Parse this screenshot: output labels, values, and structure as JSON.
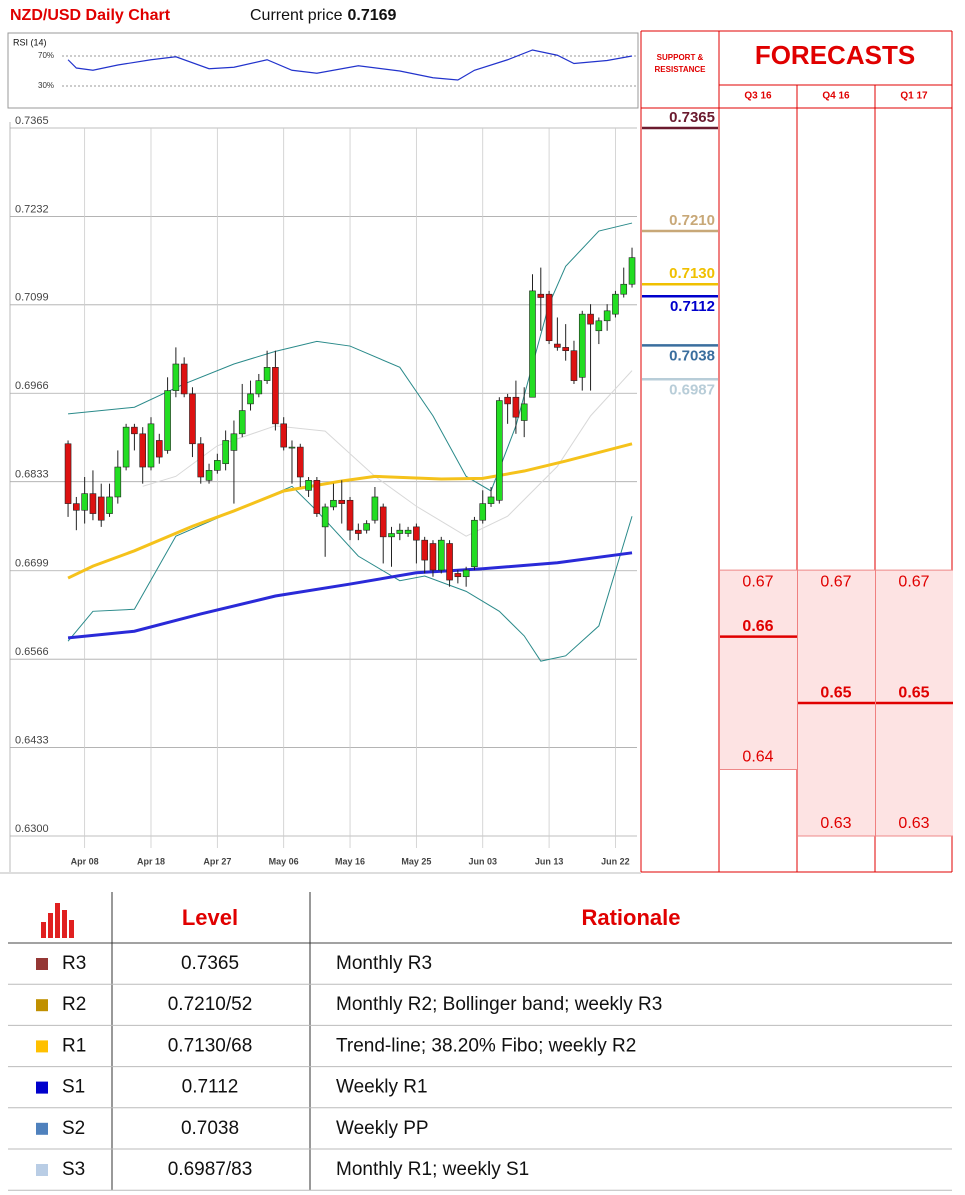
{
  "chart_data": [
    {
      "type": "candlestick",
      "title": "NZD/USD Daily Chart",
      "current_price_label": "Current price",
      "current_price": 0.7169,
      "x": [
        0,
        1,
        2,
        3,
        4,
        5,
        6,
        7,
        8,
        9,
        10,
        11,
        12,
        13,
        14,
        15,
        16,
        17,
        18,
        19,
        20,
        21,
        22,
        23,
        24,
        25,
        26,
        27,
        28,
        29,
        30,
        31,
        32,
        33,
        34,
        35,
        36,
        37,
        38,
        39,
        40,
        41,
        42,
        43,
        44,
        45,
        46,
        47,
        48,
        49,
        50,
        51,
        52,
        53,
        54,
        55,
        56,
        57,
        58,
        59,
        60,
        61,
        62,
        63,
        64,
        65,
        66,
        67,
        68
      ],
      "open": [
        0.689,
        0.68,
        0.679,
        0.6815,
        0.681,
        0.6785,
        0.681,
        0.6855,
        0.6915,
        0.6905,
        0.6855,
        0.6895,
        0.688,
        0.697,
        0.701,
        0.6965,
        0.689,
        0.6835,
        0.685,
        0.686,
        0.688,
        0.6905,
        0.695,
        0.6965,
        0.6985,
        0.7005,
        0.692,
        0.6885,
        0.6885,
        0.682,
        0.6835,
        0.6765,
        0.6795,
        0.6805,
        0.6805,
        0.676,
        0.676,
        0.6775,
        0.6795,
        0.675,
        0.6755,
        0.6755,
        0.6765,
        0.6745,
        0.674,
        0.67,
        0.674,
        0.6695,
        0.669,
        0.6705,
        0.6775,
        0.68,
        0.6805,
        0.696,
        0.696,
        0.6925,
        0.696,
        0.7115,
        0.7115,
        0.704,
        0.7035,
        0.703,
        0.699,
        0.7085,
        0.706,
        0.7075,
        0.7085,
        0.7115,
        0.713
      ],
      "high": [
        0.6895,
        0.681,
        0.684,
        0.685,
        0.683,
        0.683,
        0.688,
        0.692,
        0.692,
        0.6915,
        0.693,
        0.6905,
        0.699,
        0.7035,
        0.702,
        0.6975,
        0.69,
        0.686,
        0.6875,
        0.691,
        0.6925,
        0.698,
        0.6985,
        0.6995,
        0.703,
        0.703,
        0.693,
        0.6895,
        0.689,
        0.684,
        0.684,
        0.68,
        0.683,
        0.6835,
        0.681,
        0.677,
        0.6775,
        0.6825,
        0.68,
        0.6765,
        0.677,
        0.6765,
        0.677,
        0.675,
        0.6745,
        0.675,
        0.6745,
        0.67,
        0.6705,
        0.678,
        0.682,
        0.6825,
        0.696,
        0.6965,
        0.6985,
        0.6975,
        0.7145,
        0.7155,
        0.712,
        0.708,
        0.707,
        0.7045,
        0.709,
        0.71,
        0.708,
        0.71,
        0.712,
        0.7155,
        0.7185
      ],
      "low": [
        0.678,
        0.676,
        0.677,
        0.6775,
        0.6765,
        0.678,
        0.68,
        0.685,
        0.688,
        0.683,
        0.685,
        0.686,
        0.6875,
        0.696,
        0.696,
        0.687,
        0.683,
        0.683,
        0.6845,
        0.685,
        0.68,
        0.69,
        0.694,
        0.696,
        0.698,
        0.691,
        0.688,
        0.683,
        0.6825,
        0.681,
        0.678,
        0.672,
        0.679,
        0.677,
        0.6745,
        0.6745,
        0.6755,
        0.677,
        0.671,
        0.6705,
        0.6745,
        0.675,
        0.671,
        0.6695,
        0.669,
        0.6695,
        0.6675,
        0.668,
        0.6675,
        0.67,
        0.677,
        0.6795,
        0.68,
        0.692,
        0.6905,
        0.69,
        0.696,
        0.706,
        0.704,
        0.703,
        0.7015,
        0.698,
        0.697,
        0.697,
        0.704,
        0.706,
        0.708,
        0.711,
        0.7125
      ],
      "close": [
        0.68,
        0.679,
        0.6815,
        0.6785,
        0.6775,
        0.681,
        0.6855,
        0.6915,
        0.6905,
        0.6855,
        0.692,
        0.687,
        0.697,
        0.701,
        0.6965,
        0.689,
        0.684,
        0.685,
        0.6865,
        0.6895,
        0.6905,
        0.694,
        0.6965,
        0.6985,
        0.7005,
        0.692,
        0.6885,
        0.6885,
        0.684,
        0.6835,
        0.6785,
        0.6795,
        0.6805,
        0.68,
        0.676,
        0.6755,
        0.677,
        0.681,
        0.675,
        0.6755,
        0.676,
        0.676,
        0.6745,
        0.6715,
        0.67,
        0.6745,
        0.6685,
        0.669,
        0.67,
        0.6775,
        0.68,
        0.681,
        0.6955,
        0.695,
        0.693,
        0.695,
        0.712,
        0.711,
        0.7045,
        0.7035,
        0.703,
        0.6985,
        0.7085,
        0.707,
        0.7075,
        0.709,
        0.7115,
        0.713,
        0.717
      ],
      "up_color": "#22dd22",
      "down_color": "#dd1111",
      "xlim": [
        -7,
        68.6
      ],
      "xticks": [
        {
          "value": 2,
          "label": "Apr 08"
        },
        {
          "value": 10,
          "label": "Apr 18"
        },
        {
          "value": 18,
          "label": "Apr 27"
        },
        {
          "value": 26,
          "label": "May 06"
        },
        {
          "value": 34,
          "label": "May 16"
        },
        {
          "value": 42,
          "label": "May 25"
        },
        {
          "value": 50,
          "label": "Jun 03"
        },
        {
          "value": 58,
          "label": "Jun 13"
        },
        {
          "value": 66,
          "label": "Jun 22"
        }
      ],
      "ylim": [
        0.63,
        0.7365
      ],
      "yticks": [
        0.7365,
        0.7232,
        0.7099,
        0.6966,
        0.6833,
        0.6699,
        0.6566,
        0.6433,
        {
          "value": 0.63,
          "label": "0.6300"
        }
      ],
      "grid": true,
      "series": [
        {
          "color": "#2a8a8a",
          "width": 1,
          "x": [
            0,
            8,
            14,
            20,
            25,
            30,
            34,
            40,
            44,
            48,
            51,
            54,
            58,
            60,
            64,
            68
          ],
          "values": [
            0.6935,
            0.6945,
            0.698,
            0.701,
            0.7029,
            0.7044,
            0.7037,
            0.7005,
            0.6932,
            0.6841,
            0.6819,
            0.6917,
            0.71,
            0.7157,
            0.721,
            0.7222
          ]
        },
        {
          "color": "#2a8a8a",
          "width": 1,
          "x": [
            0,
            3,
            8,
            13,
            20,
            27,
            30,
            35,
            40,
            43,
            48,
            52,
            55,
            57,
            60,
            64,
            68
          ],
          "values": [
            0.6593,
            0.6638,
            0.6641,
            0.6751,
            0.6789,
            0.6826,
            0.6789,
            0.6721,
            0.6684,
            0.6691,
            0.6668,
            0.6638,
            0.6601,
            0.6563,
            0.6571,
            0.6616,
            0.6781
          ]
        },
        {
          "color": "#d8d8d8",
          "width": 1,
          "x": [
            9,
            13,
            18,
            25,
            31,
            37,
            42,
            48,
            53,
            59,
            63,
            68
          ],
          "values": [
            0.6826,
            0.6841,
            0.6887,
            0.6917,
            0.6909,
            0.6841,
            0.6796,
            0.6751,
            0.6781,
            0.6856,
            0.6932,
            0.7
          ]
        },
        {
          "color": "#f5c21b",
          "width": 3,
          "x": [
            0,
            3,
            8,
            15,
            20,
            26,
            33,
            37,
            45,
            50,
            55,
            60,
            68
          ],
          "values": [
            0.6688,
            0.6706,
            0.6729,
            0.6766,
            0.6789,
            0.6819,
            0.6834,
            0.6841,
            0.6837,
            0.6838,
            0.6849,
            0.6864,
            0.689
          ]
        },
        {
          "color": "#2a2ad8",
          "width": 3,
          "x": [
            0,
            8,
            16,
            25,
            34,
            42,
            50,
            59,
            68
          ],
          "values": [
            0.6598,
            0.6608,
            0.6634,
            0.6661,
            0.6679,
            0.6696,
            0.6702,
            0.6711,
            0.6726
          ]
        }
      ],
      "levels": {
        "title": "SUPPORT & RESISTANCE",
        "values": [
          0.7365,
          0.721,
          0.713,
          0.7112,
          0.7038,
          0.6987
        ],
        "value_labels": [
          "0.7365",
          "0.7210",
          "0.7130",
          "0.7112",
          "0.7038",
          "0.6987"
        ],
        "colors": [
          "#6b1a2e",
          "#c8a878",
          "#f0c000",
          "#0000cc",
          "#3a6e9e",
          "#b8cdd8"
        ]
      },
      "forecasts": {
        "title": "FORECASTS",
        "color": "#e00000",
        "columns": [
          {
            "name": "Q3 16",
            "high": 0.67,
            "mid": 0.66,
            "low": 0.64
          },
          {
            "name": "Q4 16",
            "high": 0.67,
            "mid": 0.65,
            "low": 0.63
          },
          {
            "name": "Q1 17",
            "high": 0.67,
            "mid": 0.65,
            "low": 0.63
          }
        ]
      }
    },
    {
      "type": "line",
      "title": "RSI (14)",
      "color": "#2233cc",
      "x": [
        0,
        1,
        3,
        6,
        10,
        13,
        17,
        20,
        24,
        27,
        30,
        35,
        40,
        44,
        47,
        49,
        53,
        56,
        59,
        61,
        65,
        68
      ],
      "values": [
        65,
        54,
        51,
        58,
        65,
        69,
        53,
        55,
        65,
        51,
        47,
        57,
        50,
        41,
        38,
        51,
        65,
        78,
        71,
        60,
        64,
        70
      ],
      "xlim": [
        -7,
        68.6
      ],
      "ylim": [
        5,
        90
      ],
      "yticks": [
        {
          "value": 70,
          "label": "70%"
        },
        {
          "value": 30,
          "label": "30%"
        }
      ]
    }
  ],
  "table": {
    "header": [
      "Level",
      "Rationale"
    ],
    "colors": [
      "#953735",
      "#c09000",
      "#ffc000",
      "#0000cc",
      "#4f81bd",
      "#b9cde5"
    ],
    "rows": [
      [
        "R3",
        "0.7365",
        "Monthly R3"
      ],
      [
        "R2",
        "0.7210/52",
        "Monthly R2; Bollinger band; weekly R3"
      ],
      [
        "R1",
        "0.7130/68",
        "Trend-line; 38.20% Fibo; weekly R2"
      ],
      [
        "S1",
        "0.7112",
        "Weekly R1"
      ],
      [
        "S2",
        "0.7038",
        "Weekly PP"
      ],
      [
        "S3",
        "0.6987/83",
        "Monthly R1; weekly S1"
      ]
    ]
  }
}
